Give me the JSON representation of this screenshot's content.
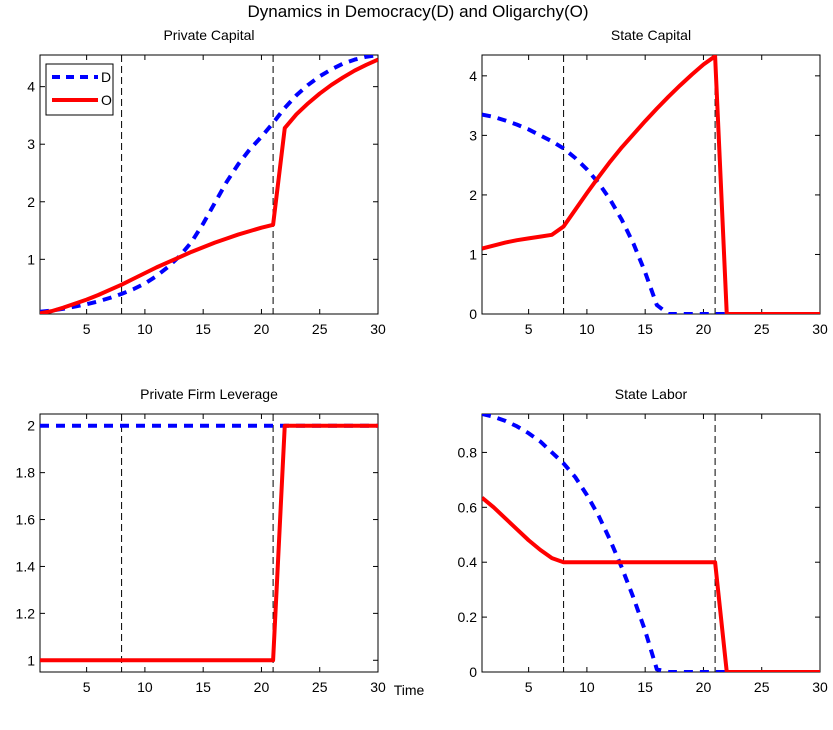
{
  "figure": {
    "title": "Dynamics in Democracy(D) and Oligarchy(O)",
    "xlabel": "Time"
  },
  "colors": {
    "D": "#0000ff",
    "O": "#ff0000",
    "vline": "#000000"
  },
  "legend": {
    "location": "top-left",
    "entries": [
      "D",
      "O"
    ]
  },
  "chart_data": [
    {
      "type": "line",
      "title": "Private Capital",
      "xlim": [
        1,
        30
      ],
      "ylim": [
        0.05,
        4.55
      ],
      "xticks": [
        5,
        10,
        15,
        20,
        25,
        30
      ],
      "yticks": [
        1,
        2,
        3,
        4
      ],
      "grid": false,
      "vlines": [
        8,
        21
      ],
      "series": [
        {
          "name": "D",
          "style": "dashed",
          "x": [
            1,
            2,
            3,
            4,
            5,
            6,
            7,
            8,
            9,
            10,
            11,
            12,
            13,
            14,
            15,
            16,
            17,
            18,
            19,
            20,
            21,
            22,
            23,
            24,
            25,
            26,
            27,
            28,
            29,
            30
          ],
          "y": [
            0.09,
            0.11,
            0.14,
            0.18,
            0.22,
            0.27,
            0.33,
            0.4,
            0.48,
            0.58,
            0.71,
            0.87,
            1.06,
            1.3,
            1.62,
            1.98,
            2.34,
            2.65,
            2.91,
            3.13,
            3.37,
            3.63,
            3.85,
            4.03,
            4.18,
            4.3,
            4.4,
            4.47,
            4.52,
            4.55
          ]
        },
        {
          "name": "O",
          "style": "solid",
          "x": [
            1,
            2,
            3,
            4,
            5,
            6,
            7,
            8,
            9,
            10,
            11,
            12,
            13,
            14,
            15,
            16,
            17,
            18,
            19,
            20,
            21,
            22,
            23,
            24,
            25,
            26,
            27,
            28,
            29,
            30
          ],
          "y": [
            0.06,
            0.1,
            0.16,
            0.23,
            0.3,
            0.38,
            0.47,
            0.56,
            0.66,
            0.76,
            0.86,
            0.95,
            1.04,
            1.13,
            1.21,
            1.29,
            1.36,
            1.43,
            1.49,
            1.55,
            1.6,
            3.28,
            3.52,
            3.71,
            3.88,
            4.03,
            4.16,
            4.28,
            4.38,
            4.47
          ]
        }
      ]
    },
    {
      "type": "line",
      "title": "State Capital",
      "xlim": [
        1,
        30
      ],
      "ylim": [
        0,
        4.35
      ],
      "xticks": [
        5,
        10,
        15,
        20,
        25,
        30
      ],
      "yticks": [
        0,
        1,
        2,
        3,
        4
      ],
      "grid": false,
      "vlines": [
        8,
        21
      ],
      "series": [
        {
          "name": "D",
          "style": "dashed",
          "x": [
            1,
            2,
            3,
            4,
            5,
            6,
            7,
            8,
            9,
            10,
            11,
            12,
            13,
            14,
            15,
            16,
            17,
            18,
            19,
            20,
            21,
            22,
            23,
            24,
            25,
            26,
            27,
            28,
            29,
            30
          ],
          "y": [
            3.35,
            3.31,
            3.25,
            3.18,
            3.1,
            3.0,
            2.9,
            2.78,
            2.62,
            2.43,
            2.2,
            1.92,
            1.58,
            1.18,
            0.7,
            0.15,
            0,
            0,
            0,
            0,
            0,
            0,
            0,
            0,
            0,
            0,
            0,
            0,
            0,
            0
          ]
        },
        {
          "name": "O",
          "style": "solid",
          "x": [
            1,
            2,
            3,
            4,
            5,
            6,
            7,
            8,
            9,
            10,
            11,
            12,
            13,
            14,
            15,
            16,
            17,
            18,
            19,
            20,
            21,
            22,
            23,
            24,
            25,
            26,
            27,
            28,
            29,
            30
          ],
          "y": [
            1.1,
            1.15,
            1.2,
            1.24,
            1.27,
            1.3,
            1.33,
            1.47,
            1.75,
            2.03,
            2.3,
            2.56,
            2.8,
            3.02,
            3.24,
            3.45,
            3.65,
            3.84,
            4.02,
            4.19,
            4.33,
            0,
            0,
            0,
            0,
            0,
            0,
            0,
            0,
            0
          ]
        }
      ]
    },
    {
      "type": "line",
      "title": "Private Firm Leverage",
      "xlim": [
        1,
        30
      ],
      "ylim": [
        0.95,
        2.05
      ],
      "xticks": [
        5,
        10,
        15,
        20,
        25,
        30
      ],
      "yticks": [
        1,
        1.2,
        1.4,
        1.6,
        1.8,
        2
      ],
      "grid": false,
      "vlines": [
        8,
        21
      ],
      "series": [
        {
          "name": "D",
          "style": "dashed",
          "x": [
            1,
            30
          ],
          "y": [
            2,
            2
          ]
        },
        {
          "name": "O",
          "style": "solid",
          "x": [
            1,
            21,
            22,
            30
          ],
          "y": [
            1,
            1,
            2,
            2
          ]
        }
      ]
    },
    {
      "type": "line",
      "title": "State Labor",
      "xlim": [
        1,
        30
      ],
      "ylim": [
        0,
        0.94
      ],
      "xticks": [
        5,
        10,
        15,
        20,
        25,
        30
      ],
      "yticks": [
        0,
        0.2,
        0.4,
        0.6,
        0.8
      ],
      "grid": false,
      "vlines": [
        8,
        21
      ],
      "series": [
        {
          "name": "D",
          "style": "dashed",
          "x": [
            1,
            2,
            3,
            4,
            5,
            6,
            7,
            8,
            9,
            10,
            11,
            12,
            13,
            14,
            15,
            16,
            17,
            18,
            19,
            20,
            21,
            22,
            23,
            24,
            25,
            26,
            27,
            28,
            29,
            30
          ],
          "y": [
            0.94,
            0.93,
            0.915,
            0.895,
            0.87,
            0.84,
            0.8,
            0.76,
            0.71,
            0.645,
            0.57,
            0.48,
            0.38,
            0.27,
            0.15,
            0.01,
            0,
            0,
            0,
            0,
            0,
            0,
            0,
            0,
            0,
            0,
            0,
            0,
            0,
            0
          ]
        },
        {
          "name": "O",
          "style": "solid",
          "x": [
            1,
            2,
            3,
            4,
            5,
            6,
            7,
            8,
            9,
            10,
            11,
            12,
            13,
            14,
            15,
            16,
            17,
            18,
            19,
            20,
            21,
            22,
            23,
            24,
            25,
            26,
            27,
            28,
            29,
            30
          ],
          "y": [
            0.635,
            0.6,
            0.56,
            0.52,
            0.48,
            0.445,
            0.415,
            0.4,
            0.4,
            0.4,
            0.4,
            0.4,
            0.4,
            0.4,
            0.4,
            0.4,
            0.4,
            0.4,
            0.4,
            0.4,
            0.4,
            0,
            0,
            0,
            0,
            0,
            0,
            0,
            0,
            0
          ]
        }
      ]
    }
  ]
}
